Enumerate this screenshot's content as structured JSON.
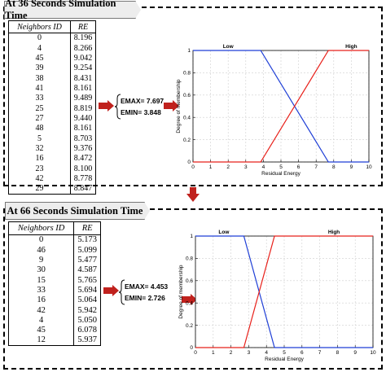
{
  "panels": [
    {
      "title": "At 36 Seconds Simulation Time",
      "headers": {
        "id": "Neighbors ID",
        "re": "RE"
      },
      "rows": [
        [
          "0",
          "8.196"
        ],
        [
          "4",
          "8.266"
        ],
        [
          "45",
          "9.042"
        ],
        [
          "39",
          "9.254"
        ],
        [
          "38",
          "8.431"
        ],
        [
          "41",
          "8.161"
        ],
        [
          "33",
          "9.489"
        ],
        [
          "25",
          "8.819"
        ],
        [
          "27",
          "9.440"
        ],
        [
          "48",
          "8.161"
        ],
        [
          "5",
          "8.703"
        ],
        [
          "32",
          "9.376"
        ],
        [
          "16",
          "8.472"
        ],
        [
          "23",
          "8.100"
        ],
        [
          "42",
          "8.778"
        ],
        [
          "29",
          "8.847"
        ]
      ],
      "emax": "EMAX= 7.697",
      "emin": "EMIN= 3.848"
    },
    {
      "title": "At 66 Seconds Simulation Time",
      "headers": {
        "id": "Neighbors ID",
        "re": "RE"
      },
      "rows": [
        [
          "0",
          "5.173"
        ],
        [
          "46",
          "5.099"
        ],
        [
          "9",
          "5.477"
        ],
        [
          "30",
          "4.587"
        ],
        [
          "15",
          "5.765"
        ],
        [
          "33",
          "5.694"
        ],
        [
          "16",
          "5.064"
        ],
        [
          "42",
          "5.942"
        ],
        [
          "4",
          "5.050"
        ],
        [
          "45",
          "6.078"
        ],
        [
          "12",
          "5.937"
        ]
      ],
      "emax": "EMAX= 4.453",
      "emin": "EMIN= 2.726"
    }
  ],
  "chart_data": [
    {
      "type": "line",
      "xlabel": "Residual Energy",
      "ylabel": "Degree of membership",
      "xlim": [
        0,
        10
      ],
      "ylim": [
        0,
        1
      ],
      "xticks": [
        "0",
        "1",
        "2",
        "3",
        "4",
        "5",
        "6",
        "7",
        "8",
        "9",
        "10"
      ],
      "yticks": [
        "0",
        "0.2",
        "0.4",
        "0.6",
        "0.8",
        "1"
      ],
      "grid": true,
      "annotations": [
        "Low",
        "High"
      ],
      "series": [
        {
          "color": "#1f3fd6",
          "x": [
            0,
            3.848,
            7.697,
            10
          ],
          "y": [
            1,
            1,
            0,
            0
          ]
        },
        {
          "color": "#e8201a",
          "x": [
            0,
            3.848,
            7.697,
            10
          ],
          "y": [
            0,
            0,
            1,
            1
          ]
        }
      ]
    },
    {
      "type": "line",
      "xlabel": "Residual Energy",
      "ylabel": "Degree of membership",
      "xlim": [
        0,
        10
      ],
      "ylim": [
        0,
        1
      ],
      "xticks": [
        "0",
        "1",
        "2",
        "3",
        "4",
        "5",
        "6",
        "7",
        "8",
        "9",
        "10"
      ],
      "yticks": [
        "0",
        "0.2",
        "0.4",
        "0.6",
        "0.8",
        "1"
      ],
      "grid": true,
      "annotations": [
        "Low",
        "High"
      ],
      "series": [
        {
          "color": "#1f3fd6",
          "x": [
            0,
            2.726,
            4.453,
            10
          ],
          "y": [
            1,
            1,
            0,
            0
          ]
        },
        {
          "color": "#e8201a",
          "x": [
            0,
            2.726,
            4.453,
            10
          ],
          "y": [
            0,
            0,
            1,
            1
          ]
        }
      ]
    }
  ]
}
